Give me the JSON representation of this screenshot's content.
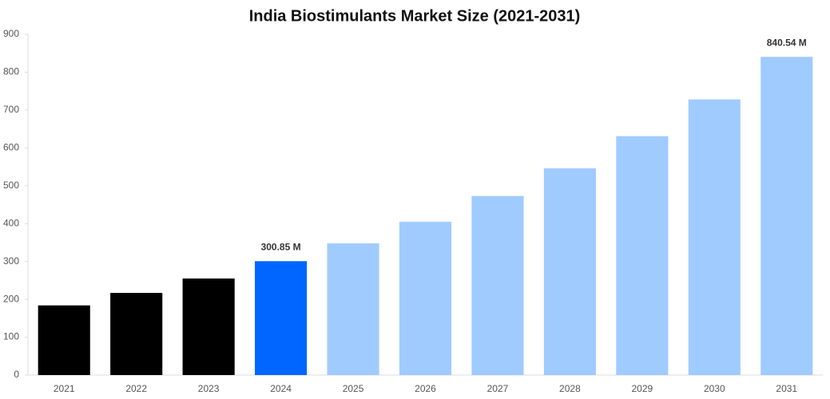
{
  "chart_data": {
    "type": "bar",
    "title": "India Biostimulants Market Size (2021-2031)",
    "categories": [
      "2021",
      "2022",
      "2023",
      "2024",
      "2025",
      "2026",
      "2027",
      "2028",
      "2029",
      "2030",
      "2031"
    ],
    "values": [
      184,
      217,
      255,
      300.85,
      348,
      405,
      473,
      546,
      631,
      728,
      840.54
    ],
    "value_labels": [
      null,
      null,
      null,
      "300.85 M",
      null,
      null,
      null,
      null,
      null,
      null,
      "840.54 M"
    ],
    "colors": [
      "#000000",
      "#000000",
      "#000000",
      "#0066ff",
      "#a0cbff",
      "#a0cbff",
      "#a0cbff",
      "#a0cbff",
      "#a0cbff",
      "#a0cbff",
      "#a0cbff"
    ],
    "ylim": [
      0,
      900
    ],
    "yticks": [
      0,
      100,
      200,
      300,
      400,
      500,
      600,
      700,
      800,
      900
    ],
    "grid": false
  }
}
